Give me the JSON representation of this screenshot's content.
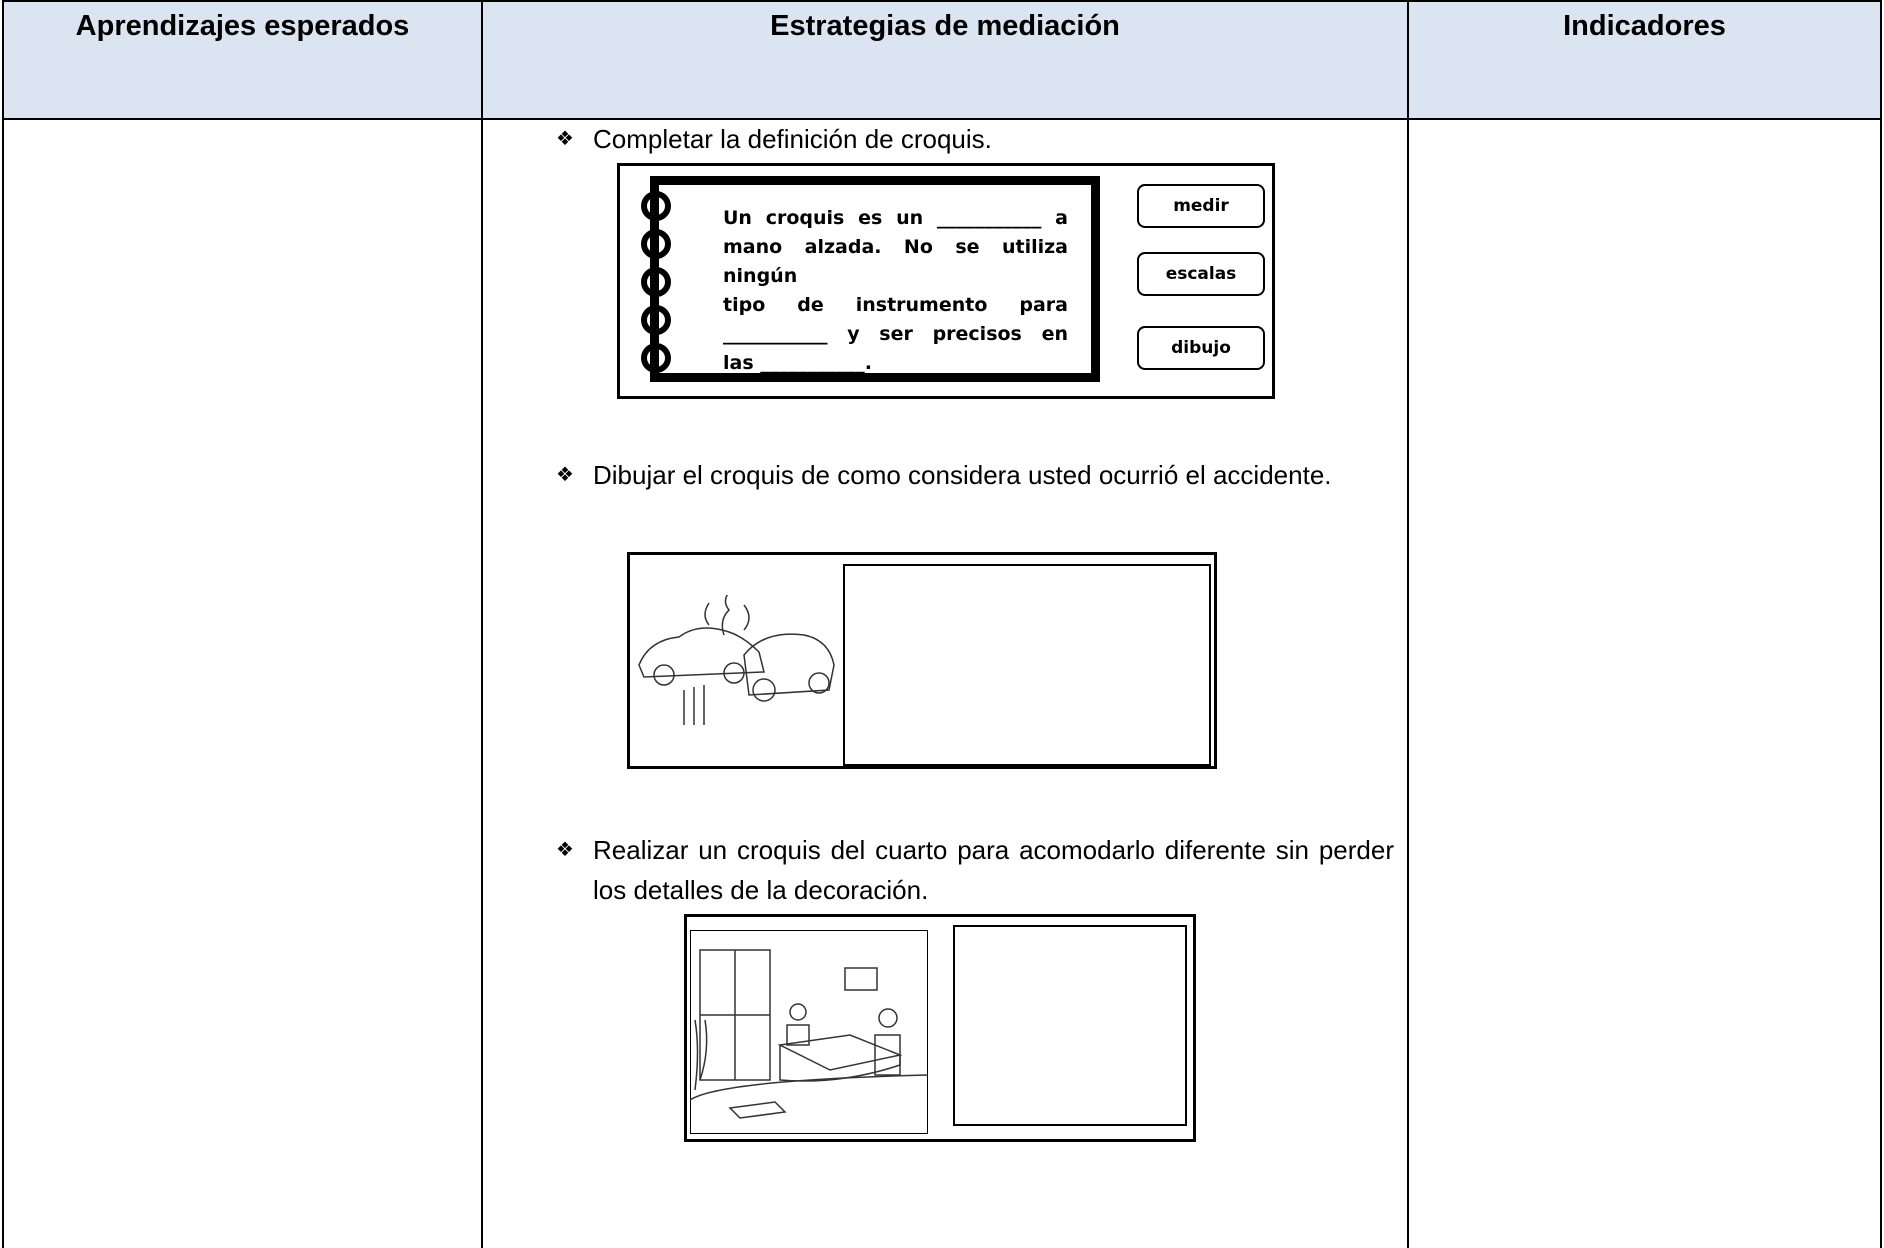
{
  "header": {
    "columns": [
      "Aprendizajes esperados",
      "Estrategias de mediación",
      "Indicadores"
    ]
  },
  "content": {
    "items": [
      {
        "text": "Completar la definición de croquis."
      },
      {
        "text": "Dibujar el croquis de como considera usted ocurrió el accidente."
      },
      {
        "text": "Realizar un croquis del cuarto para acomodarlo diferente sin perder los detalles de la decoración."
      }
    ]
  },
  "worksheet": {
    "lines": [
      "Un croquis es un ___________ a",
      "mano alzada. No se utiliza ningún",
      "tipo de instrumento para",
      "___________ y ser precisos en",
      "las ___________."
    ],
    "options": [
      "medir",
      "escalas",
      "dibujo"
    ]
  }
}
